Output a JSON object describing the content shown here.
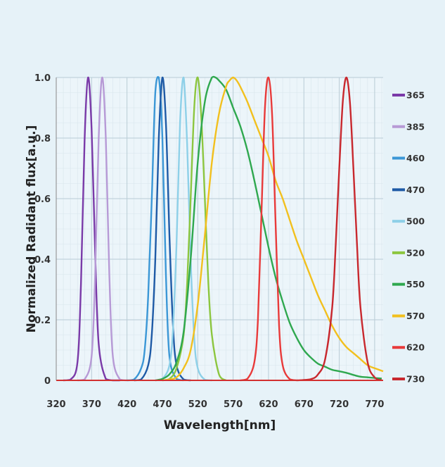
{
  "chart_data": {
    "type": "line",
    "xlabel": "Wavelength[nm]",
    "ylabel": "Normalized Radidant flux[a.u.]",
    "xlim": [
      320,
      782
    ],
    "ylim": [
      0,
      1.0
    ],
    "x_ticks": [
      "320",
      "370",
      "420",
      "470",
      "520",
      "570",
      "620",
      "670",
      "720",
      "770"
    ],
    "x_tick_values": [
      320,
      370,
      420,
      470,
      520,
      570,
      620,
      670,
      720,
      770
    ],
    "y_ticks": [
      "0",
      "0.2",
      "0.4",
      "0.6",
      "0.8",
      "1.0"
    ],
    "y_tick_values": [
      0,
      0.2,
      0.4,
      0.6,
      0.8,
      1.0
    ],
    "grid": true,
    "legend_position": "right",
    "series": [
      {
        "name": "365",
        "color": "#7a3aa8",
        "x": [
          330,
          340,
          350,
          355,
          360,
          365,
          370,
          375,
          380,
          390,
          400,
          410
        ],
        "y": [
          0,
          0.002,
          0.06,
          0.32,
          0.79,
          1.0,
          0.83,
          0.42,
          0.12,
          0.005,
          0,
          0
        ]
      },
      {
        "name": "385",
        "color": "#b79ad6",
        "x": [
          350,
          360,
          370,
          375,
          380,
          385,
          390,
          395,
          400,
          410,
          420
        ],
        "y": [
          0,
          0.003,
          0.08,
          0.35,
          0.8,
          1.0,
          0.8,
          0.35,
          0.08,
          0.003,
          0
        ]
      },
      {
        "name": "460",
        "color": "#3b97d6",
        "x": [
          420,
          430,
          440,
          445,
          450,
          455,
          460,
          465,
          470,
          475,
          480,
          490,
          500
        ],
        "y": [
          0,
          0.003,
          0.04,
          0.1,
          0.28,
          0.6,
          0.95,
          1.0,
          0.8,
          0.35,
          0.08,
          0.005,
          0
        ]
      },
      {
        "name": "470",
        "color": "#1e5aa6",
        "x": [
          430,
          440,
          450,
          455,
          460,
          465,
          470,
          475,
          480,
          485,
          490,
          500,
          510
        ],
        "y": [
          0,
          0.003,
          0.05,
          0.15,
          0.4,
          0.8,
          1.0,
          0.85,
          0.48,
          0.18,
          0.05,
          0.003,
          0
        ]
      },
      {
        "name": "500",
        "color": "#8ed0e8",
        "x": [
          460,
          470,
          480,
          485,
          490,
          495,
          500,
          505,
          510,
          515,
          520,
          530,
          540
        ],
        "y": [
          0,
          0.005,
          0.05,
          0.17,
          0.45,
          0.85,
          1.0,
          0.78,
          0.4,
          0.14,
          0.04,
          0.002,
          0
        ]
      },
      {
        "name": "520",
        "color": "#8cc63f",
        "x": [
          470,
          480,
          490,
          500,
          505,
          510,
          515,
          520,
          525,
          530,
          535,
          540,
          550,
          560
        ],
        "y": [
          0,
          0.005,
          0.04,
          0.15,
          0.32,
          0.6,
          0.9,
          1.0,
          0.87,
          0.6,
          0.32,
          0.15,
          0.02,
          0
        ]
      },
      {
        "name": "550",
        "color": "#2fa84f",
        "x": [
          460,
          470,
          480,
          490,
          500,
          510,
          520,
          530,
          540,
          545,
          550,
          560,
          570,
          580,
          590,
          600,
          610,
          620,
          630,
          640,
          650,
          660,
          670,
          680,
          690,
          700,
          710,
          720,
          730,
          740,
          750,
          760,
          770,
          780
        ],
        "y": [
          0,
          0.005,
          0.02,
          0.06,
          0.16,
          0.4,
          0.72,
          0.92,
          1.0,
          1.0,
          0.99,
          0.96,
          0.9,
          0.84,
          0.76,
          0.66,
          0.55,
          0.44,
          0.34,
          0.26,
          0.19,
          0.14,
          0.1,
          0.075,
          0.055,
          0.045,
          0.035,
          0.03,
          0.025,
          0.018,
          0.012,
          0.01,
          0.008,
          0.006
        ]
      },
      {
        "name": "570",
        "color": "#f2c01e",
        "x": [
          470,
          480,
          490,
          500,
          510,
          520,
          530,
          540,
          550,
          560,
          565,
          570,
          575,
          580,
          590,
          600,
          610,
          620,
          630,
          640,
          650,
          660,
          670,
          680,
          690,
          700,
          710,
          720,
          730,
          740,
          750,
          760,
          770,
          782
        ],
        "y": [
          0,
          0.003,
          0.01,
          0.04,
          0.1,
          0.25,
          0.48,
          0.72,
          0.88,
          0.97,
          0.99,
          1.0,
          0.99,
          0.97,
          0.92,
          0.86,
          0.8,
          0.74,
          0.66,
          0.6,
          0.53,
          0.46,
          0.4,
          0.34,
          0.28,
          0.23,
          0.18,
          0.14,
          0.11,
          0.09,
          0.07,
          0.05,
          0.04,
          0.03
        ]
      },
      {
        "name": "620",
        "color": "#e83a3a",
        "x": [
          580,
          590,
          600,
          605,
          610,
          615,
          620,
          625,
          630,
          635,
          640,
          650,
          660
        ],
        "y": [
          0,
          0.005,
          0.06,
          0.2,
          0.55,
          0.9,
          1.0,
          0.88,
          0.52,
          0.18,
          0.05,
          0.004,
          0
        ]
      },
      {
        "name": "730",
        "color": "#c8282e",
        "x": [
          660,
          680,
          690,
          700,
          710,
          715,
          720,
          725,
          730,
          735,
          740,
          745,
          750,
          760,
          770,
          780
        ],
        "y": [
          0,
          0.004,
          0.02,
          0.07,
          0.24,
          0.45,
          0.7,
          0.92,
          1.0,
          0.92,
          0.7,
          0.45,
          0.24,
          0.06,
          0.01,
          0
        ]
      }
    ]
  }
}
